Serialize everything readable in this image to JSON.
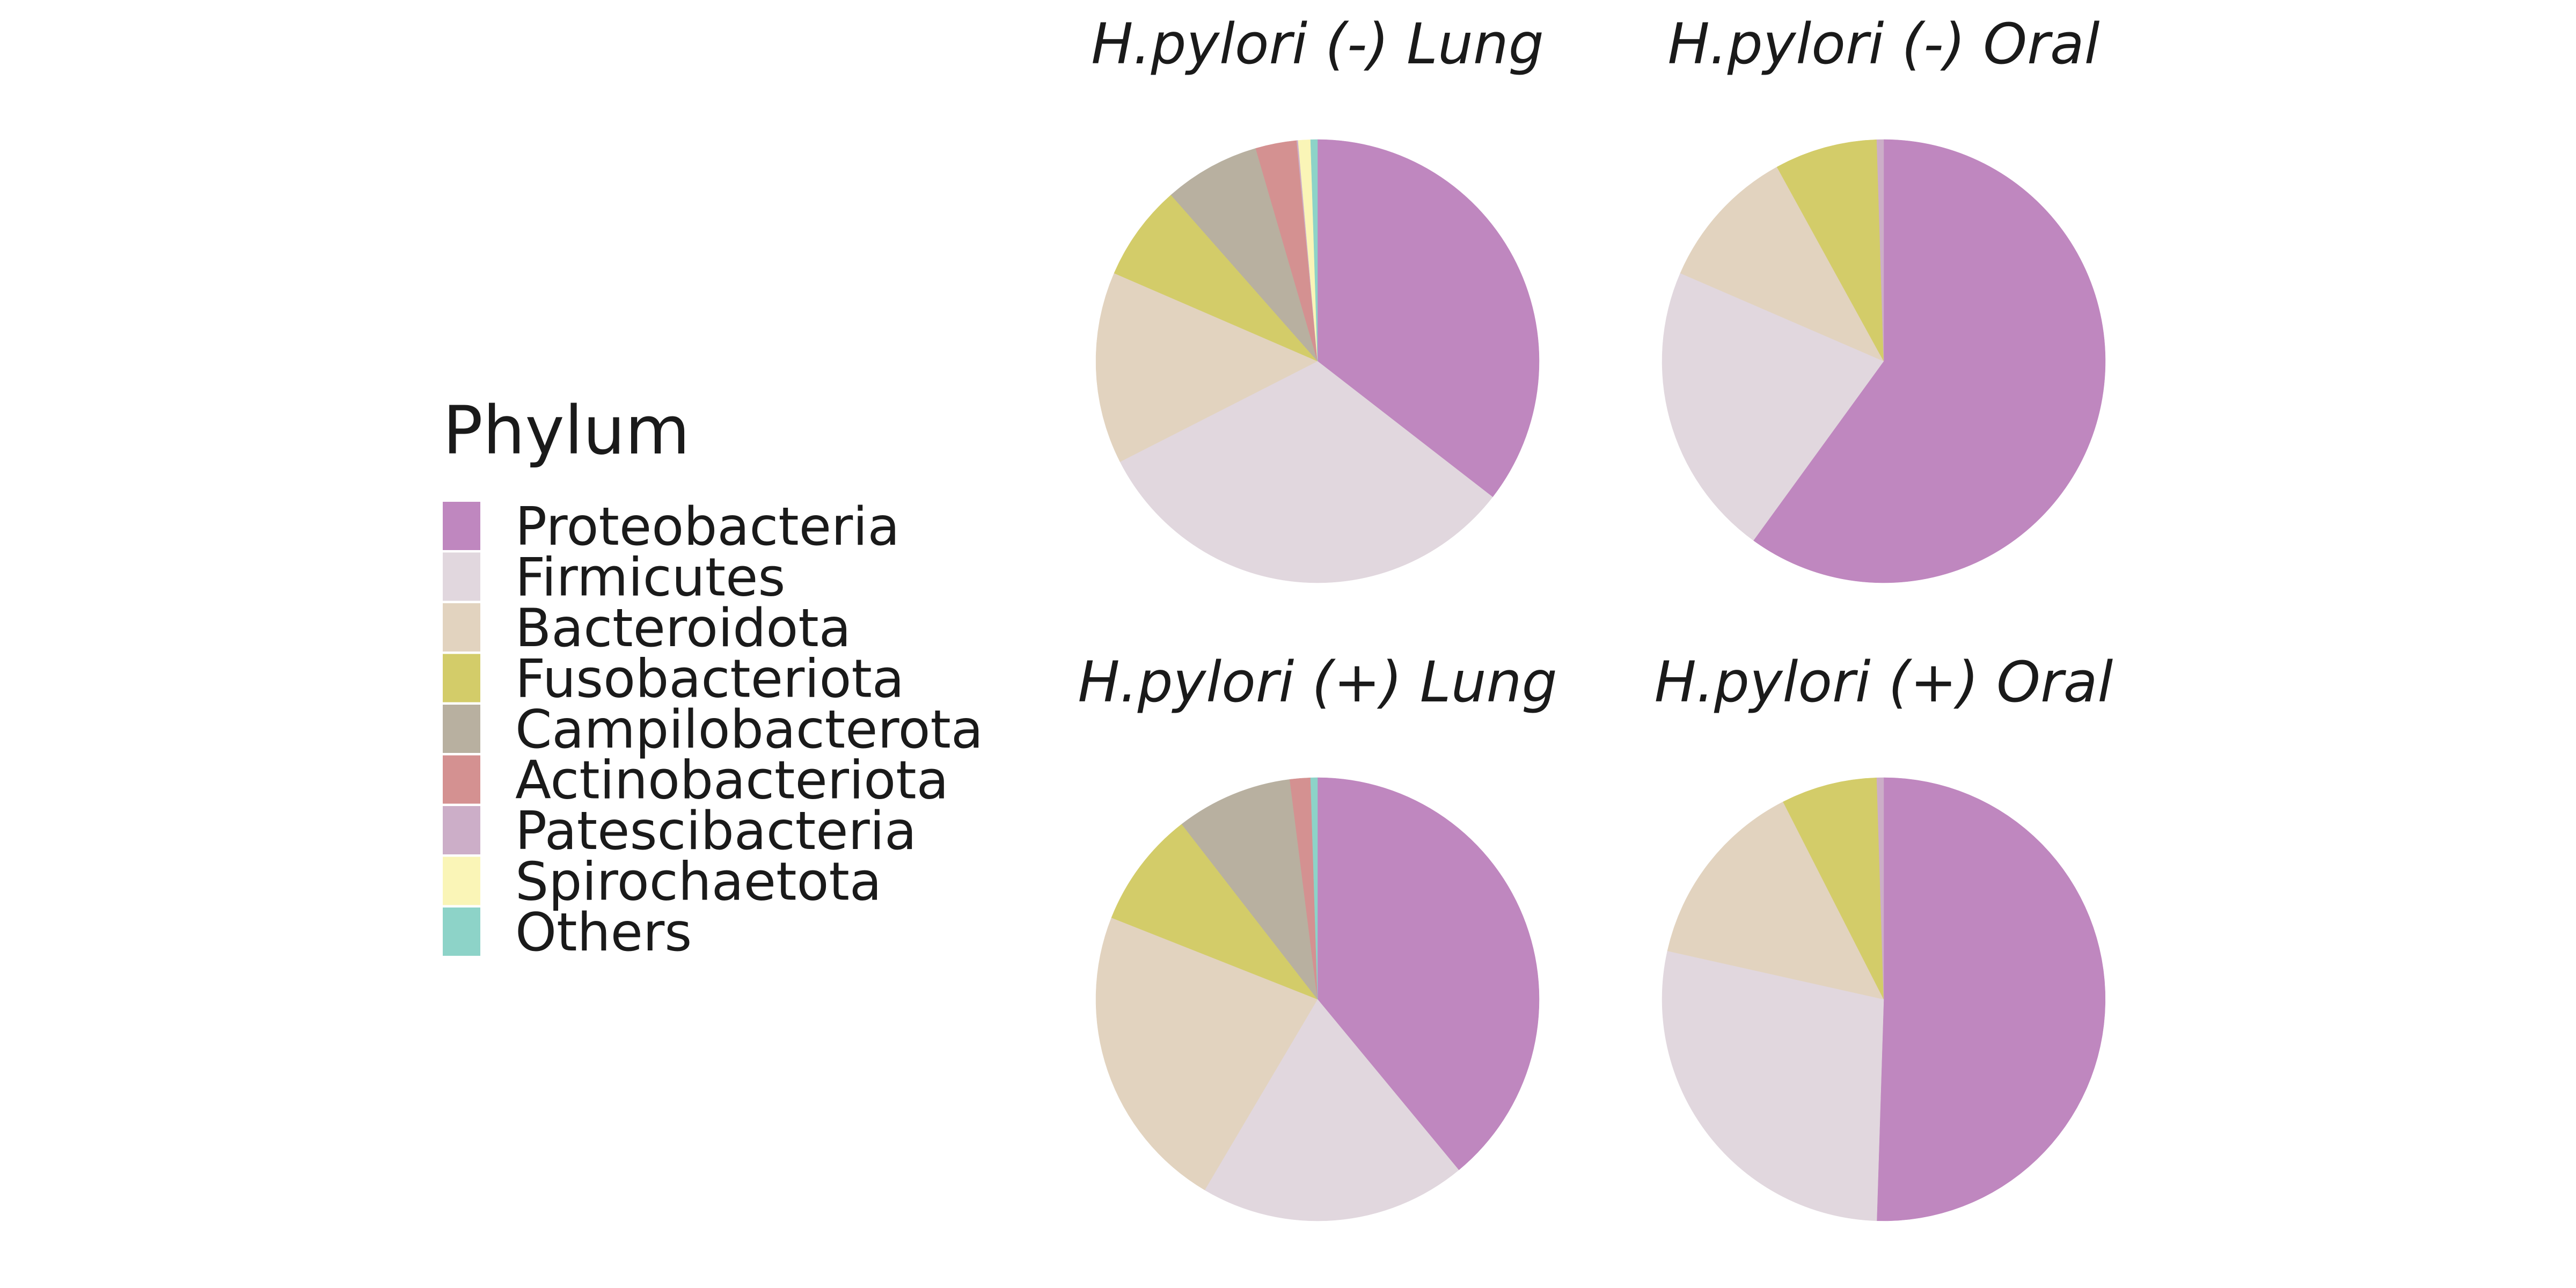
{
  "chart_data": {
    "type": "pie",
    "legend_title": "Phylum",
    "legend_position": "left",
    "categories": [
      "Proteobacteria",
      "Firmicutes",
      "Bacteroidota",
      "Fusobacteriota",
      "Campilobacterota",
      "Actinobacteriota",
      "Patescibacteria",
      "Spirochaetota",
      "Others"
    ],
    "colors": [
      "#bf87bf",
      "#e1d7de",
      "#e2d3bf",
      "#d3cc69",
      "#b8b0a0",
      "#d49191",
      "#ccaec8",
      "#faf5b7",
      "#8dd3c8"
    ],
    "panels": [
      {
        "title": "H.pylori (-) Lung",
        "values": [
          35.5,
          32.0,
          14.0,
          7.0,
          7.0,
          3.0,
          0.1,
          0.9,
          0.5
        ]
      },
      {
        "title": "H.pylori (-) Oral",
        "values": [
          60.0,
          21.5,
          10.5,
          7.5,
          0.0,
          0.0,
          0.5,
          0.0,
          0.0
        ]
      },
      {
        "title": "H.pylori (+) Lung",
        "values": [
          39.0,
          19.5,
          22.5,
          8.5,
          8.5,
          1.5,
          0.0,
          0.0,
          0.5
        ]
      },
      {
        "title": "H.pylori (+) Oral",
        "values": [
          50.5,
          28.0,
          14.0,
          7.0,
          0.0,
          0.0,
          0.5,
          0.0,
          0.0
        ]
      }
    ]
  }
}
